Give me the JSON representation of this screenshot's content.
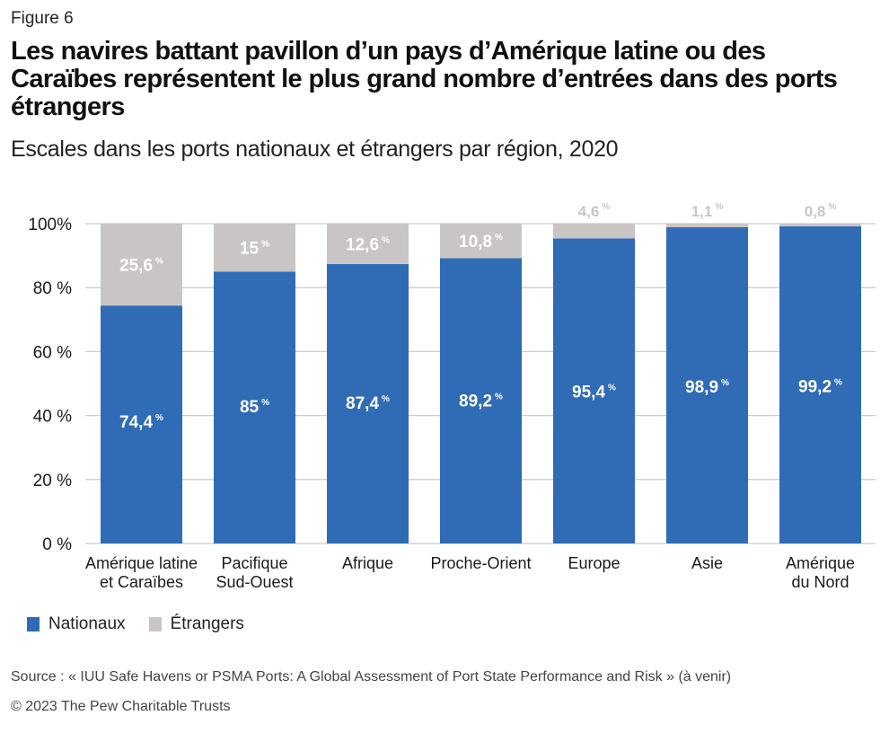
{
  "figure_label": "Figure 6",
  "title": "Les navires battant pavillon d’un pays d’Amérique latine ou des Caraïbes représentent le plus grand nombre d’entrées dans des ports étrangers",
  "subtitle": "Escales dans les ports nationaux et étrangers par région, 2020",
  "source": "Source : « IUU Safe Havens or PSMA Ports: A Global Assessment of Port State Performance and Risk » (à venir)",
  "copyright": "© 2023 The Pew Charitable Trusts",
  "colors": {
    "domestic": "#306cb5",
    "foreign": "#c9c5c4",
    "foreign_label_outside": "#c9c5c4",
    "grid": "#cccccc",
    "inside_label": "#ffffff"
  },
  "chart_data": {
    "type": "bar",
    "stacked": true,
    "title": "Escales dans les ports nationaux et étrangers par région, 2020",
    "xlabel": "",
    "ylabel": "",
    "ylim": [
      0,
      100
    ],
    "yticks": [
      0,
      20,
      40,
      60,
      80,
      100
    ],
    "ytick_labels": [
      "0 %",
      "20 %",
      "40 %",
      "60 %",
      "80 %",
      "100%"
    ],
    "grid": true,
    "legend_position": "bottom-left",
    "categories": [
      [
        "Amérique latine",
        "et Caraïbes"
      ],
      [
        "Pacifique",
        "Sud-Ouest"
      ],
      [
        "Afrique"
      ],
      [
        "Proche-Orient"
      ],
      [
        "Europe"
      ],
      [
        "Asie"
      ],
      [
        "Amérique",
        "du Nord"
      ]
    ],
    "series": [
      {
        "name": "Nationaux",
        "values": [
          74.4,
          85,
          87.4,
          89.2,
          95.4,
          98.9,
          99.2
        ],
        "labels": [
          "74,4",
          "85",
          "87,4",
          "89,2",
          "95,4",
          "98,9",
          "99,2"
        ]
      },
      {
        "name": "Étrangers",
        "values": [
          25.6,
          15,
          12.6,
          10.8,
          4.6,
          1.1,
          0.8
        ],
        "labels": [
          "25,6",
          "15",
          "12,6",
          "10,8",
          "4,6",
          "1,1",
          "0,8"
        ]
      }
    ],
    "label_suffix": "%"
  }
}
